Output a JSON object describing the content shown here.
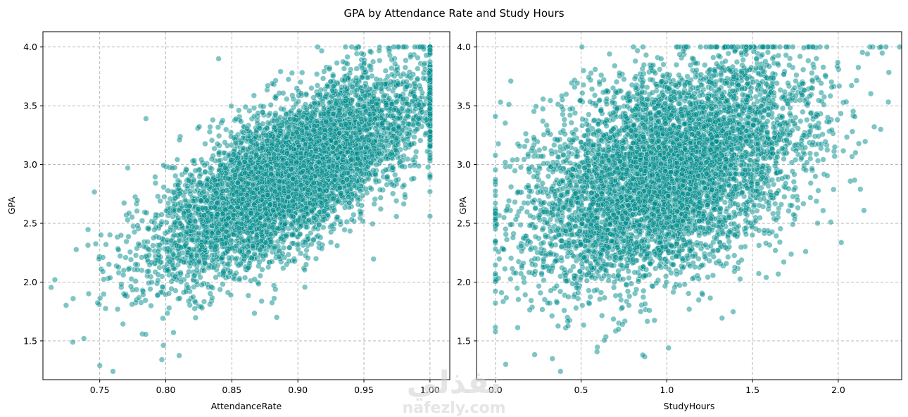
{
  "figure": {
    "suptitle": "GPA by Attendance Rate and Study Hours",
    "watermark": {
      "arabic": "نفذلي",
      "latin": "nafezly.com"
    }
  },
  "chart_data": [
    {
      "type": "scatter",
      "title": "",
      "xlabel": "AttendanceRate",
      "ylabel": "GPA",
      "xlim": [
        0.707,
        1.015
      ],
      "ylim": [
        1.17,
        4.13
      ],
      "xticks": [
        0.75,
        0.8,
        0.85,
        0.9,
        0.95,
        1.0
      ],
      "xtick_labels": [
        "0.75",
        "0.80",
        "0.85",
        "0.90",
        "0.95",
        "1.00"
      ],
      "yticks": [
        1.5,
        2.0,
        2.5,
        3.0,
        3.5,
        4.0
      ],
      "ytick_labels": [
        "1.5",
        "2.0",
        "2.5",
        "3.0",
        "3.5",
        "4.0"
      ],
      "grid": true,
      "color": "#008b8b",
      "alpha": 0.5,
      "relationship": {
        "slope": 6.0,
        "intercept": -2.45,
        "noise_sd": 0.3,
        "x_center": 0.895,
        "x_sd": 0.052,
        "x_max": 1.0,
        "y_max": 4.0,
        "point_count": 6000
      },
      "notable_points": [
        {
          "x": 0.716,
          "y": 2.02
        },
        {
          "x": 0.738,
          "y": 1.52
        },
        {
          "x": 0.75,
          "y": 1.29
        },
        {
          "x": 0.76,
          "y": 1.24
        },
        {
          "x": 0.785,
          "y": 3.39
        },
        {
          "x": 0.797,
          "y": 1.34
        },
        {
          "x": 0.84,
          "y": 3.9
        },
        {
          "x": 0.884,
          "y": 1.7
        },
        {
          "x": 0.944,
          "y": 3.99
        },
        {
          "x": 0.915,
          "y": 4.0
        },
        {
          "x": 1.0,
          "y": 2.56
        }
      ]
    },
    {
      "type": "scatter",
      "title": "",
      "xlabel": "StudyHours",
      "ylabel": "GPA",
      "xlim": [
        -0.11,
        2.37
      ],
      "ylim": [
        1.17,
        4.13
      ],
      "xticks": [
        0.0,
        0.5,
        1.0,
        1.5,
        2.0
      ],
      "xtick_labels": [
        "0.0",
        "0.5",
        "1.0",
        "1.5",
        "2.0"
      ],
      "yticks": [
        1.5,
        2.0,
        2.5,
        3.0,
        3.5,
        4.0
      ],
      "ytick_labels": [
        "1.5",
        "2.0",
        "2.5",
        "3.0",
        "3.5",
        "4.0"
      ],
      "grid": true,
      "color": "#008b8b",
      "alpha": 0.5,
      "relationship": {
        "slope": 0.52,
        "intercept": 2.42,
        "noise_sd": 0.42,
        "x_center": 1.0,
        "x_sd": 0.4,
        "x_min": 0.0,
        "y_max": 4.0,
        "point_count": 6000
      },
      "notable_points": [
        {
          "x": 0.06,
          "y": 1.3
        },
        {
          "x": 0.38,
          "y": 1.24
        },
        {
          "x": 0.86,
          "y": 1.38
        },
        {
          "x": 1.01,
          "y": 1.44
        },
        {
          "x": 0.03,
          "y": 3.53
        },
        {
          "x": 0.09,
          "y": 3.71
        },
        {
          "x": 2.25,
          "y": 4.0
        },
        {
          "x": 2.15,
          "y": 2.61
        },
        {
          "x": 1.58,
          "y": 2.04
        },
        {
          "x": 1.81,
          "y": 2.26
        }
      ]
    }
  ]
}
